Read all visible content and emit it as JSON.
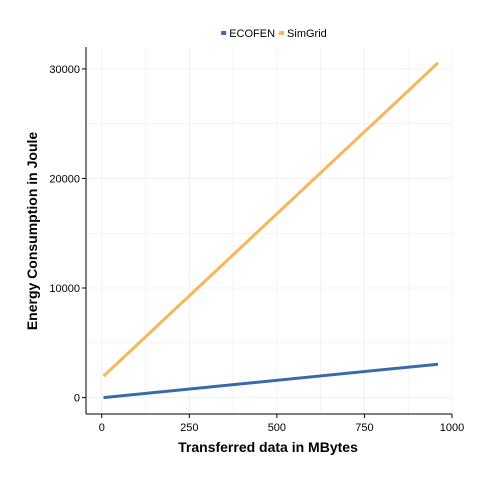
{
  "chart_data": {
    "type": "line",
    "title": "",
    "xlabel": "Transferred data in MBytes",
    "ylabel": "Energy Consumption in Joule",
    "xlim": [
      -45,
      1000
    ],
    "ylim": [
      -1500,
      32000
    ],
    "x_ticks": [
      0,
      250,
      500,
      750,
      1000
    ],
    "x_tick_labels": [
      "0",
      "250",
      "500",
      "750",
      "1000"
    ],
    "y_ticks": [
      0,
      10000,
      20000,
      30000
    ],
    "y_tick_labels": [
      "0",
      "10000",
      "20000",
      "30000"
    ],
    "grid": true,
    "legend_position": "top",
    "series": [
      {
        "name": "ECOFEN",
        "color": "#3a6aab",
        "x": [
          5,
          960
        ],
        "y": [
          0,
          3050
        ]
      },
      {
        "name": "SimGrid",
        "color": "#f7b55c",
        "x": [
          5,
          960
        ],
        "y": [
          1950,
          30550
        ]
      }
    ]
  }
}
